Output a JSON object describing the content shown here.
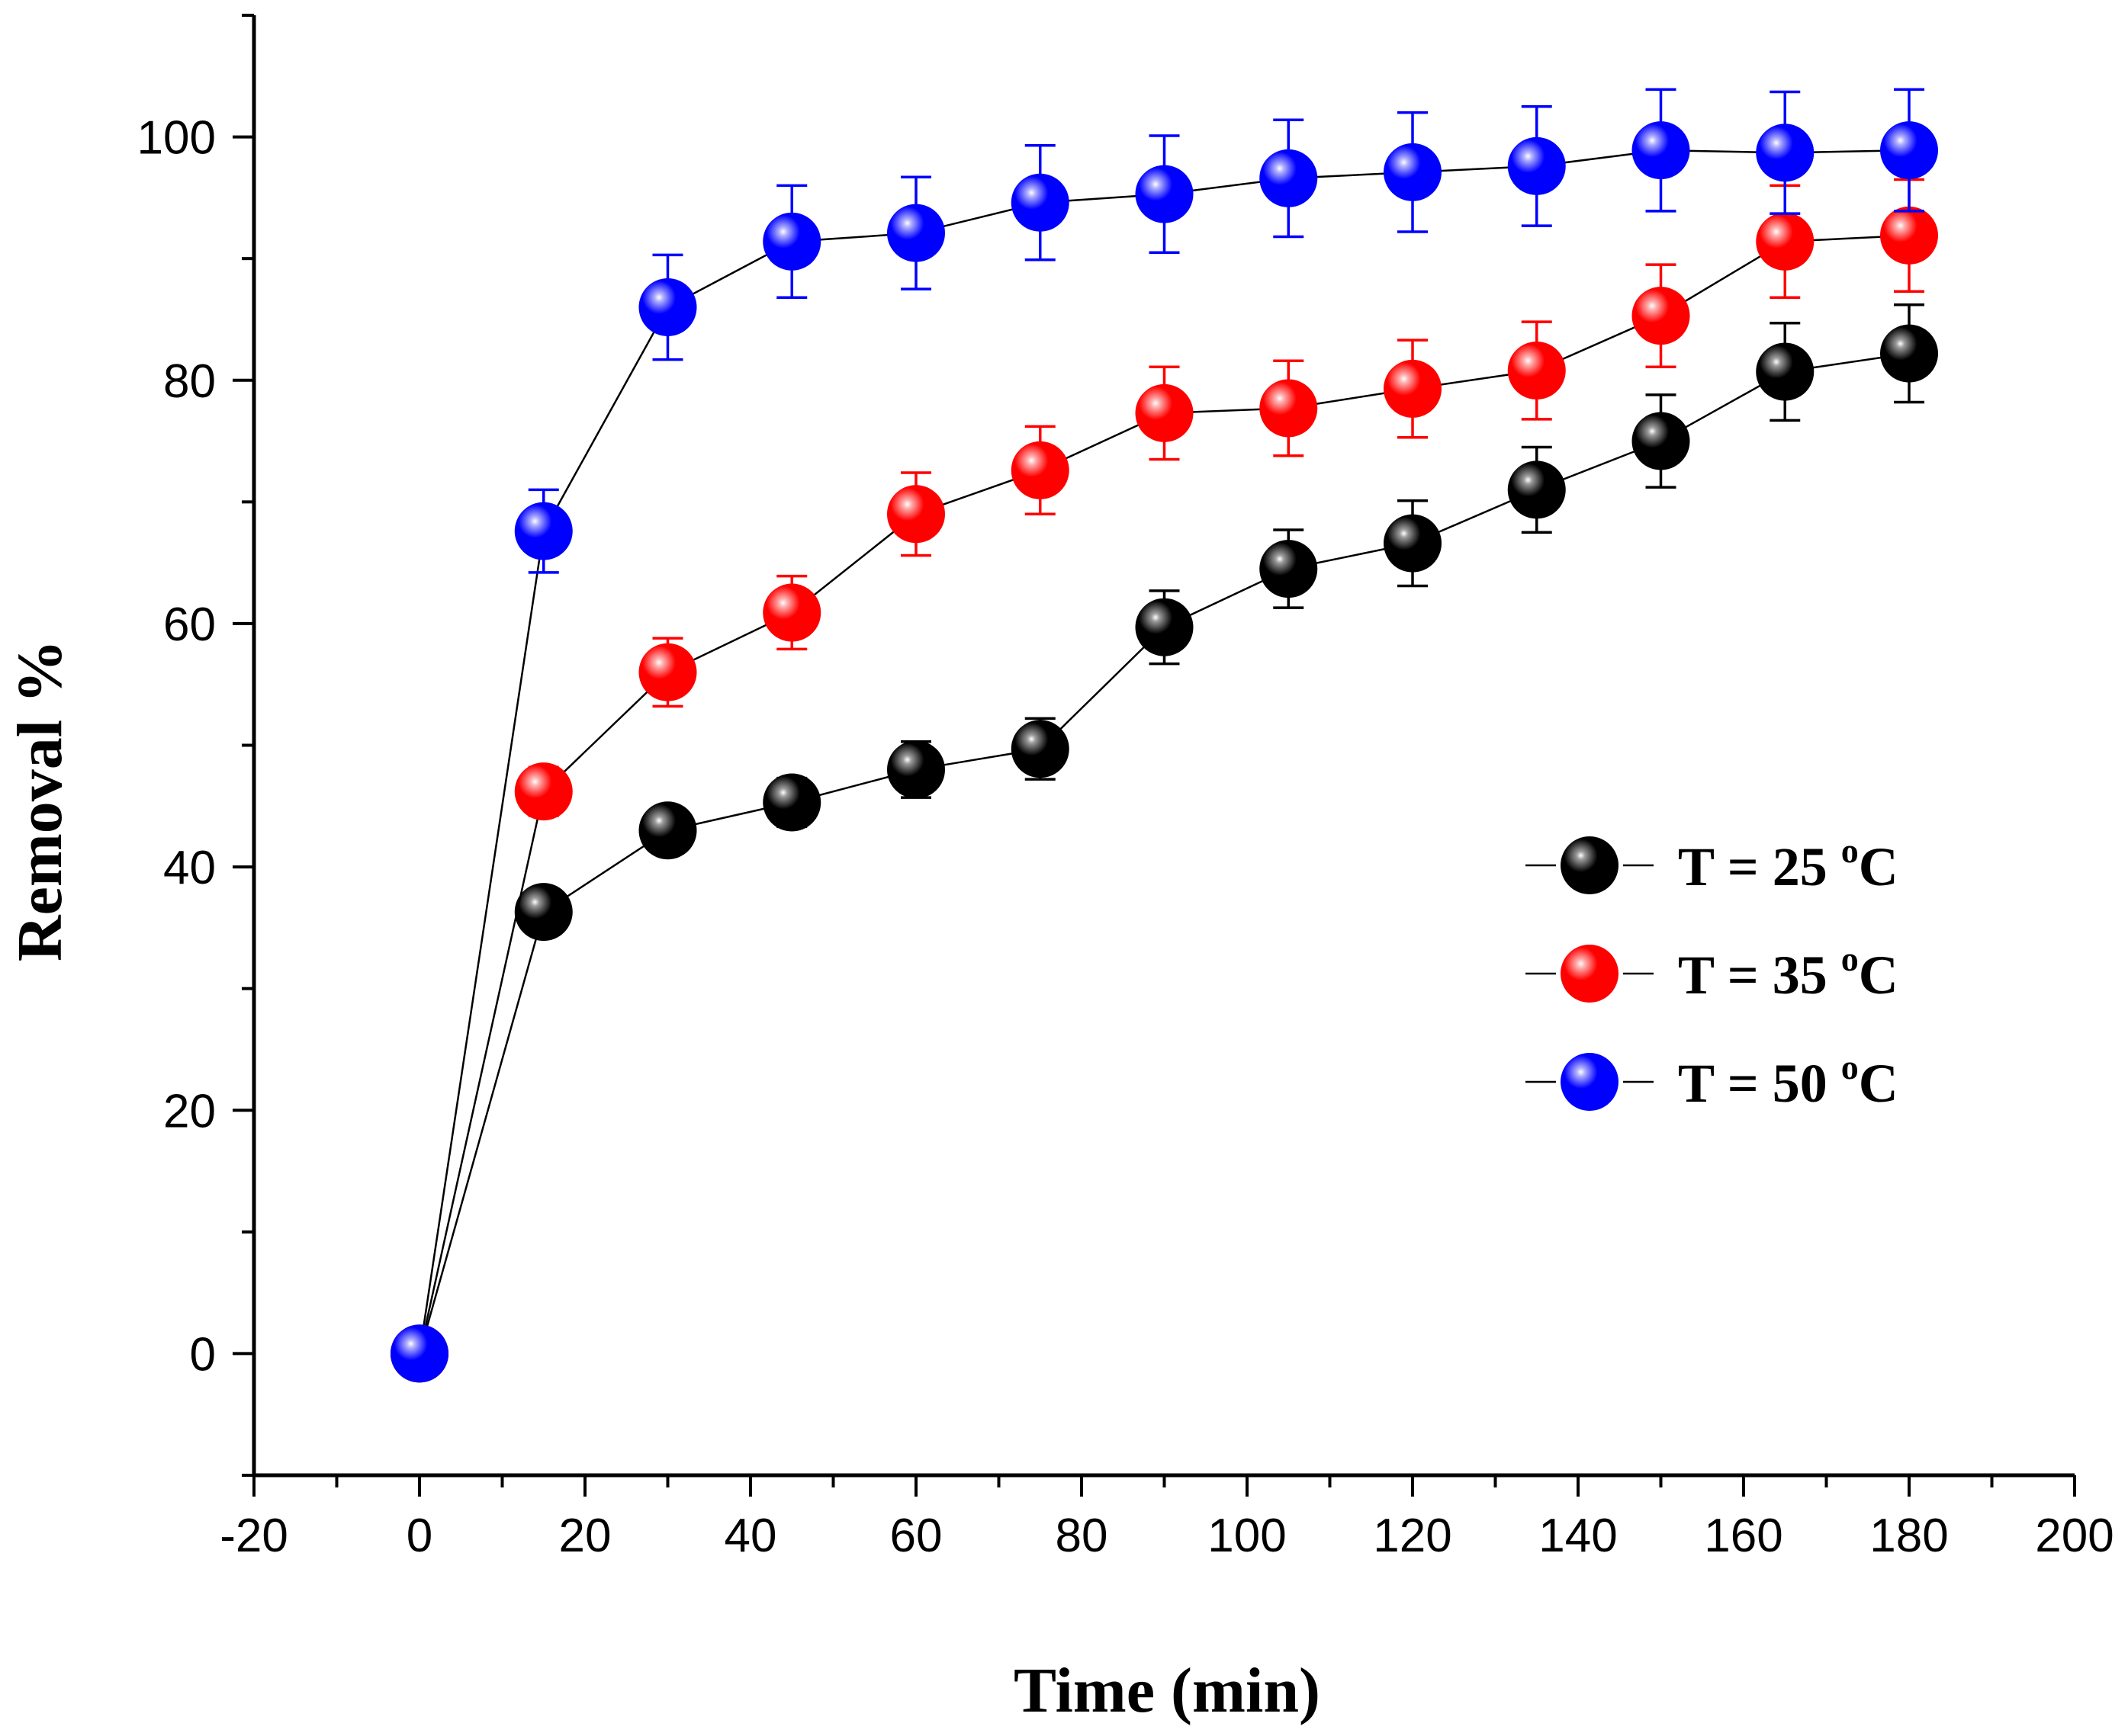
{
  "chart_data": {
    "type": "scatter",
    "xlabel": "Time (min)",
    "ylabel": "Removal %",
    "xlim": [
      -20,
      200
    ],
    "ylim": [
      -10,
      110
    ],
    "xticks": [
      -20,
      0,
      20,
      40,
      60,
      80,
      100,
      120,
      140,
      160,
      180,
      200
    ],
    "yticks": [
      0,
      20,
      40,
      60,
      80,
      100
    ],
    "legend_position": "center-right",
    "series": [
      {
        "name": "T = 25 oC",
        "label_main": "T = 25 ",
        "label_sup": "o",
        "label_unit": "C",
        "color": "#000000",
        "highlight": "#9a9a9a",
        "x": [
          0,
          15,
          30,
          45,
          60,
          75,
          90,
          105,
          120,
          135,
          150,
          165,
          180
        ],
        "y": [
          0,
          36.3,
          43.0,
          45.3,
          48.0,
          49.7,
          59.7,
          64.5,
          66.6,
          71.0,
          75.0,
          80.7,
          82.2
        ],
        "err": [
          0,
          1.5,
          1.5,
          2.0,
          2.3,
          2.5,
          3.0,
          3.2,
          3.5,
          3.5,
          3.8,
          4.0,
          4.0
        ]
      },
      {
        "name": "T = 35 oC",
        "label_main": "T = 35 ",
        "label_sup": "o",
        "label_unit": "C",
        "color": "#ff0000",
        "highlight": "#ffb0b0",
        "x": [
          0,
          15,
          30,
          45,
          60,
          75,
          90,
          105,
          120,
          135,
          150,
          165,
          180
        ],
        "y": [
          0,
          46.2,
          56.0,
          60.9,
          69.0,
          72.6,
          77.3,
          77.7,
          79.3,
          80.8,
          85.3,
          91.4,
          91.9
        ],
        "err": [
          0,
          2.0,
          2.8,
          3.0,
          3.4,
          3.6,
          3.8,
          3.9,
          4.0,
          4.0,
          4.2,
          4.6,
          4.6
        ]
      },
      {
        "name": "T = 50 oC",
        "label_main": "T = 50 ",
        "label_sup": "o",
        "label_unit": "C",
        "color": "#0000ff",
        "highlight": "#b0b0ff",
        "x": [
          0,
          15,
          30,
          45,
          60,
          75,
          90,
          105,
          120,
          135,
          150,
          165,
          180
        ],
        "y": [
          0,
          67.6,
          86.0,
          91.4,
          92.1,
          94.6,
          95.3,
          96.6,
          97.1,
          97.6,
          98.9,
          98.7,
          98.9
        ],
        "err": [
          0,
          3.4,
          4.3,
          4.6,
          4.6,
          4.7,
          4.8,
          4.8,
          4.9,
          4.9,
          5.0,
          5.0,
          5.0
        ]
      }
    ]
  }
}
